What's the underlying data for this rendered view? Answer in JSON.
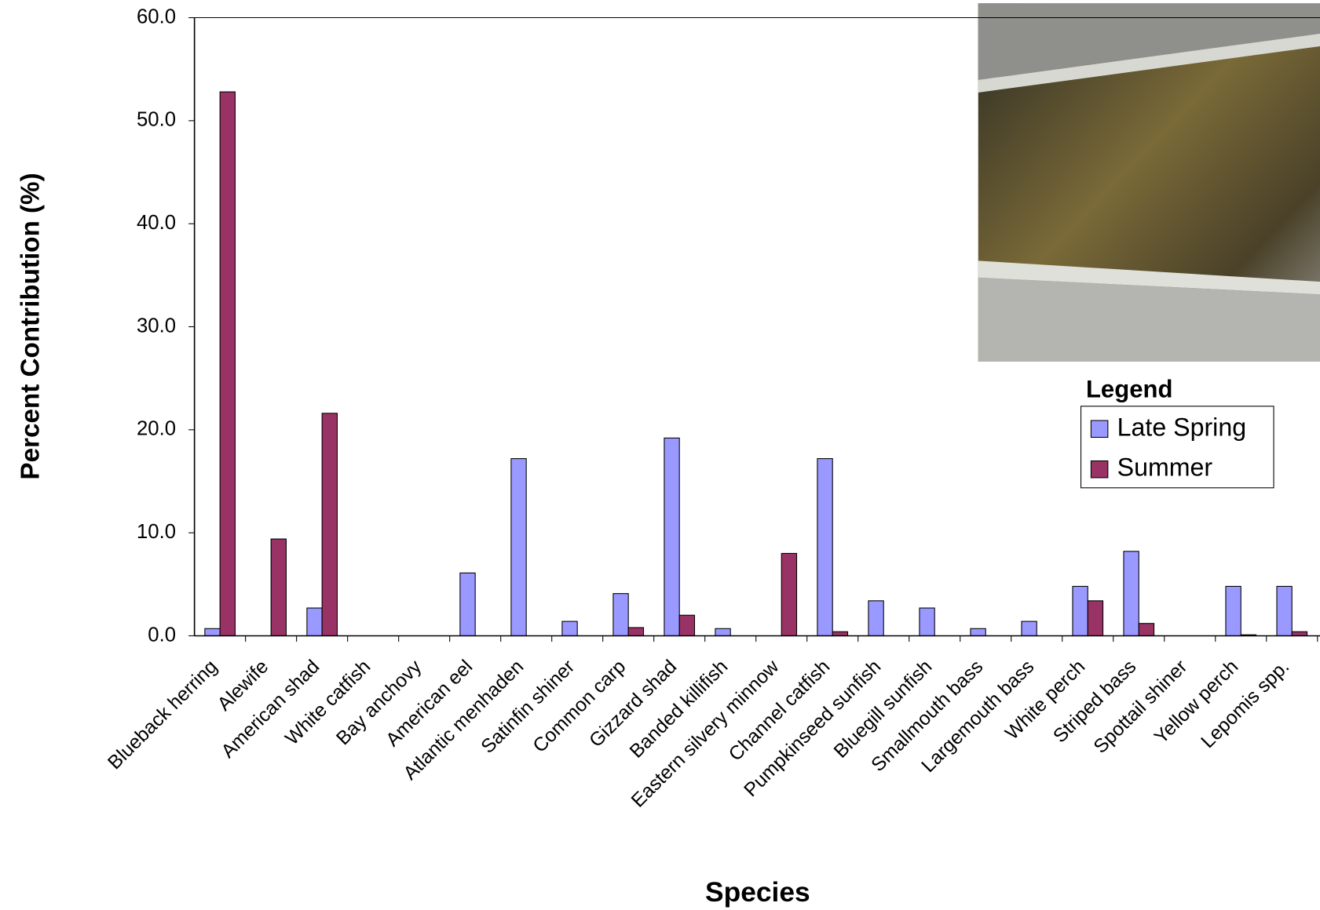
{
  "chart_data": {
    "type": "bar",
    "x_label": "Species",
    "y_label": "Percent Contribution (%)",
    "legend_title": "Legend",
    "categories": [
      "Blueback herring",
      "Alewife",
      "American shad",
      "White catfish",
      "Bay anchovy",
      "American eel",
      "Atlantic menhaden",
      "Satinfin shiner",
      "Common carp",
      "Gizzard shad",
      "Banded killifish",
      "Eastern silvery minnow",
      "Channel catfish",
      "Pumpkinseed sunfish",
      "Bluegill sunfish",
      "Smallmouth bass",
      "Largemouth bass",
      "White perch",
      "Striped bass",
      "Spottail shiner",
      "Yellow perch",
      "Lepomis spp."
    ],
    "series": [
      {
        "name": "Late Spring",
        "color": "#9999ff",
        "values": [
          0.7,
          0,
          2.7,
          0,
          0,
          6.1,
          17.2,
          1.4,
          4.1,
          19.2,
          0.7,
          0,
          17.2,
          3.4,
          2.7,
          0.7,
          1.4,
          4.8,
          8.2,
          0,
          4.8,
          4.8
        ]
      },
      {
        "name": "Summer",
        "color": "#993366",
        "values": [
          52.8,
          9.4,
          21.6,
          0,
          0,
          0,
          0,
          0,
          0.8,
          2.0,
          0,
          8.0,
          0.4,
          0,
          0,
          0,
          0,
          3.4,
          1.2,
          0,
          0.1,
          0.4
        ]
      }
    ],
    "ylim": [
      0,
      60
    ],
    "yticks": [
      {
        "value": 0,
        "label": "0.0"
      },
      {
        "value": 10,
        "label": "10.0"
      },
      {
        "value": 20,
        "label": "20.0"
      },
      {
        "value": 30,
        "label": "30.0"
      },
      {
        "value": 40,
        "label": "40.0"
      },
      {
        "value": 50,
        "label": "50.0"
      },
      {
        "value": 60,
        "label": "60.0"
      }
    ],
    "grid": false,
    "legend": "right"
  }
}
